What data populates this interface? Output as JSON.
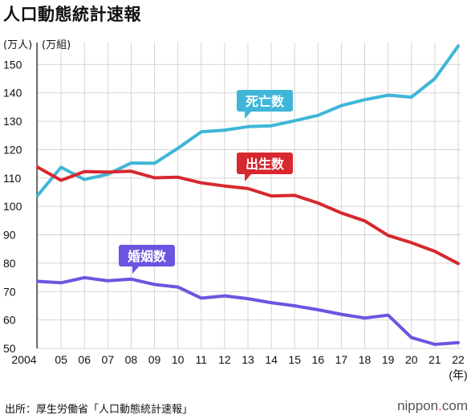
{
  "title": "人口動態統計速報",
  "source": "出所：厚生労働省「人口動態統計速報」",
  "logo": {
    "text": "nippon",
    "dot": ".",
    "tld": "com"
  },
  "chart_data": {
    "type": "line",
    "title": "人口動態統計速報",
    "ylabel_units": [
      "(万人)",
      "(万組)"
    ],
    "xlabel": "(年)",
    "ylim": [
      50,
      160
    ],
    "yticks": [
      50,
      60,
      70,
      80,
      90,
      100,
      110,
      120,
      130,
      140,
      150
    ],
    "x": [
      "2004",
      "05",
      "06",
      "07",
      "08",
      "09",
      "10",
      "11",
      "12",
      "13",
      "14",
      "15",
      "16",
      "17",
      "18",
      "19",
      "20",
      "21",
      "22"
    ],
    "grid": true,
    "series": [
      {
        "name": "死亡数",
        "color": "#3fb6d8",
        "values": [
          103.9,
          113.8,
          109.5,
          111.3,
          115.3,
          115.2,
          120.5,
          126.3,
          126.9,
          128.1,
          128.4,
          130.2,
          132.1,
          135.5,
          137.6,
          139.2,
          138.5,
          145.0,
          156.5
        ]
      },
      {
        "name": "出生数",
        "color": "#d7282f",
        "values": [
          113.8,
          109.2,
          112.3,
          112.1,
          112.4,
          110.1,
          110.3,
          108.3,
          107.2,
          106.3,
          103.7,
          103.9,
          101.2,
          97.7,
          94.9,
          89.8,
          87.2,
          84.2,
          79.9
        ]
      },
      {
        "name": "婚姻数",
        "color": "#6b55e0",
        "values": [
          73.6,
          73.1,
          74.9,
          73.8,
          74.4,
          72.5,
          71.6,
          67.7,
          68.5,
          67.5,
          66.1,
          65.0,
          63.6,
          62.0,
          60.7,
          61.7,
          53.8,
          51.4,
          52.0
        ]
      }
    ]
  }
}
